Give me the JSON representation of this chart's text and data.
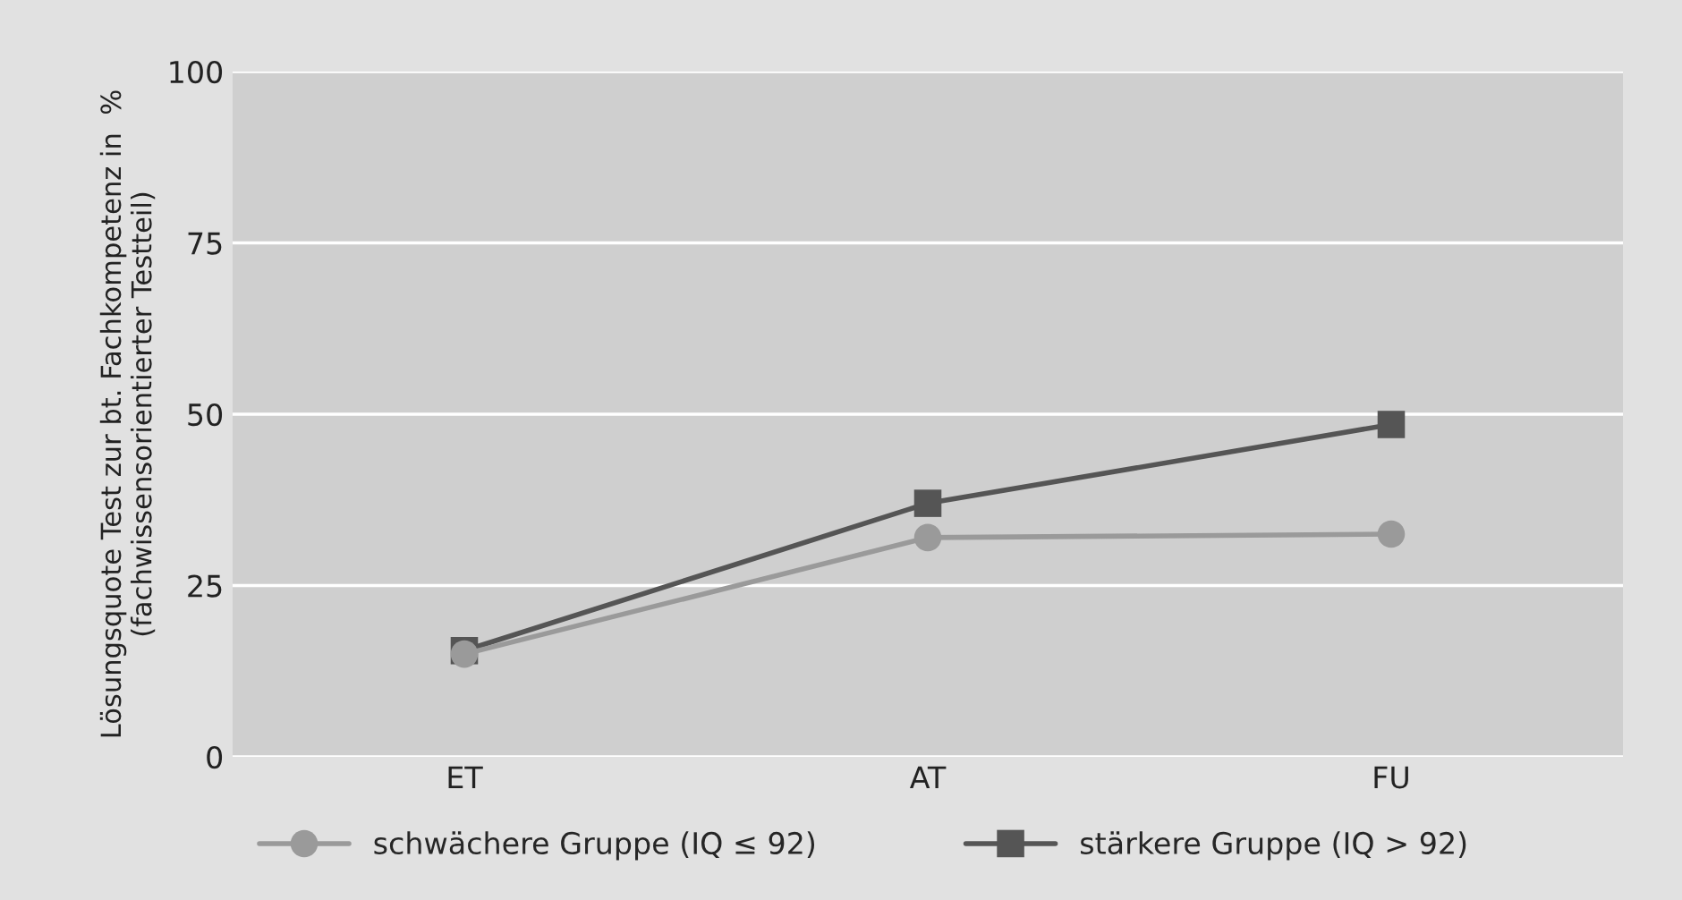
{
  "chart_data": {
    "type": "line",
    "ylabel": "Lösungsquote Test zur bt. Fachkompetenz in  %\n(fachwissensorientierter Testteil)",
    "categories": [
      "ET",
      "AT",
      "FU"
    ],
    "series": [
      {
        "name": "schwächere Gruppe (IQ ≤ 92)",
        "color": "#9a9a9a",
        "marker": "circle",
        "values": [
          15,
          32,
          32.5
        ]
      },
      {
        "name": "stärkere Gruppe (IQ > 92)",
        "color": "#555555",
        "marker": "square",
        "values": [
          15.5,
          37,
          48.5
        ]
      }
    ],
    "ylim": [
      0,
      100
    ],
    "yticks": [
      0,
      25,
      50,
      75,
      100
    ],
    "grid": "y",
    "legend": "bottom",
    "line_style": "solid"
  }
}
